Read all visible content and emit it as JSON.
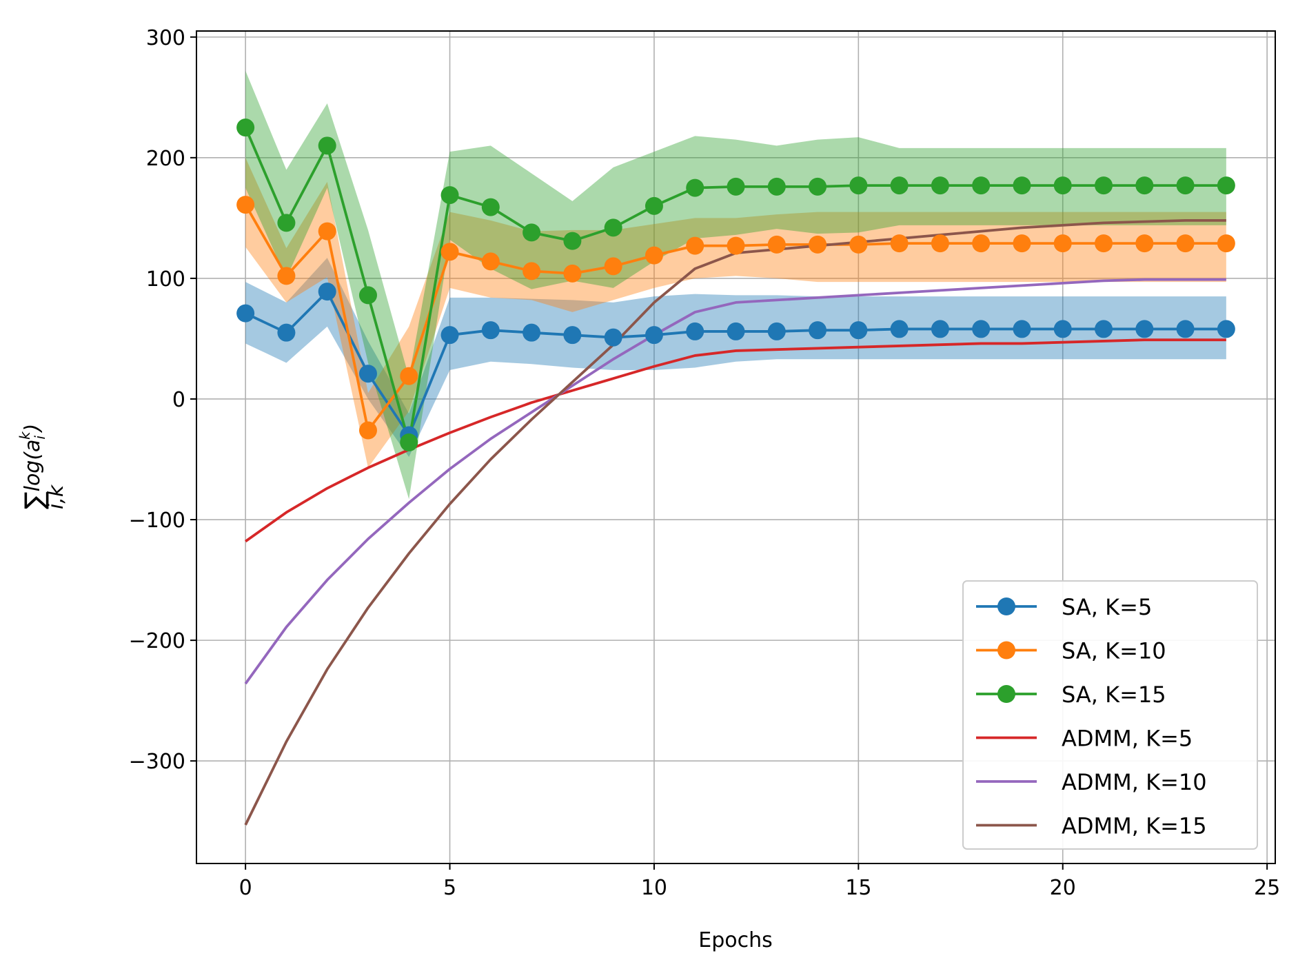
{
  "chart_data": {
    "type": "line",
    "title": "",
    "xlabel": "Epochs",
    "ylabel": "∑ log(a_i^k)",
    "ylabel_parts": {
      "sum": "∑",
      "subscript": "i,k",
      "main": "log(a",
      "sup": "k",
      "sub": "i",
      "close": ")"
    },
    "xlim": [
      -1.2,
      25.2
    ],
    "ylim": [
      -385,
      305
    ],
    "xticks": [
      0,
      5,
      10,
      15,
      20,
      25
    ],
    "yticks": [
      -300,
      -200,
      -100,
      0,
      100,
      200,
      300
    ],
    "xtick_labels": [
      "0",
      "5",
      "10",
      "15",
      "20",
      "25"
    ],
    "ytick_labels": [
      "−300",
      "−200",
      "−100",
      "0",
      "100",
      "200",
      "300"
    ],
    "grid": true,
    "legend_position": "lower-right",
    "x": [
      0,
      1,
      2,
      3,
      4,
      5,
      6,
      7,
      8,
      9,
      10,
      11,
      12,
      13,
      14,
      15,
      16,
      17,
      18,
      19,
      20,
      21,
      22,
      23,
      24
    ],
    "series": [
      {
        "name": "SA, K=5",
        "label": "SA, K=5",
        "color": "#1f77b4",
        "marker": true,
        "values": [
          71,
          55,
          89,
          21,
          -30,
          53,
          57,
          55,
          53,
          51,
          53,
          56,
          56,
          56,
          57,
          57,
          58,
          58,
          58,
          58,
          58,
          58,
          58,
          58,
          58
        ],
        "band_upper": [
          97,
          80,
          117,
          48,
          -12,
          84,
          84,
          83,
          82,
          80,
          85,
          87,
          86,
          86,
          85,
          85,
          85,
          85,
          85,
          85,
          85,
          85,
          85,
          85,
          85
        ],
        "band_lower": [
          46,
          30,
          60,
          0,
          -48,
          24,
          31,
          29,
          26,
          24,
          24,
          26,
          31,
          33,
          33,
          33,
          33,
          33,
          33,
          33,
          33,
          33,
          33,
          33,
          33
        ]
      },
      {
        "name": "SA, K=10",
        "label": "SA, K=10",
        "color": "#ff7f0e",
        "marker": true,
        "values": [
          161,
          102,
          139,
          -26,
          19,
          122,
          114,
          106,
          104,
          110,
          119,
          127,
          127,
          128,
          128,
          128,
          129,
          129,
          129,
          129,
          129,
          129,
          129,
          129,
          129
        ],
        "band_upper": [
          200,
          125,
          180,
          5,
          60,
          155,
          148,
          139,
          140,
          140,
          145,
          150,
          150,
          153,
          155,
          155,
          155,
          155,
          155,
          155,
          155,
          155,
          155,
          155,
          155
        ],
        "band_lower": [
          126,
          80,
          101,
          -57,
          -10,
          92,
          84,
          82,
          72,
          82,
          92,
          100,
          102,
          100,
          97,
          97,
          97,
          97,
          97,
          97,
          97,
          97,
          97,
          97,
          97
        ]
      },
      {
        "name": "SA, K=15",
        "label": "SA, K=15",
        "color": "#2ca02c",
        "marker": true,
        "values": [
          225,
          146,
          210,
          86,
          -36,
          169,
          159,
          138,
          131,
          142,
          160,
          175,
          176,
          176,
          176,
          177,
          177,
          177,
          177,
          177,
          177,
          177,
          177,
          177,
          177
        ],
        "band_upper": [
          272,
          190,
          245,
          140,
          18,
          205,
          210,
          187,
          164,
          192,
          205,
          218,
          215,
          210,
          215,
          217,
          208,
          208,
          208,
          208,
          208,
          208,
          208,
          208,
          208
        ],
        "band_lower": [
          175,
          100,
          175,
          30,
          -83,
          132,
          108,
          91,
          98,
          92,
          114,
          133,
          136,
          141,
          137,
          138,
          144,
          144,
          144,
          144,
          144,
          144,
          144,
          144,
          144
        ]
      },
      {
        "name": "ADMM, K=5",
        "label": "ADMM, K=5",
        "color": "#d62728",
        "marker": false,
        "values": [
          -118,
          -94,
          -74,
          -57,
          -42,
          -28,
          -15,
          -3,
          7,
          17,
          27,
          36,
          40,
          41,
          42,
          43,
          44,
          45,
          46,
          46,
          47,
          48,
          49,
          49,
          49
        ]
      },
      {
        "name": "ADMM, K=10",
        "label": "ADMM, K=10",
        "color": "#9467bd",
        "marker": false,
        "values": [
          -236,
          -189,
          -150,
          -116,
          -86,
          -58,
          -33,
          -11,
          11,
          33,
          53,
          72,
          80,
          82,
          84,
          86,
          88,
          90,
          92,
          94,
          96,
          98,
          99,
          99,
          99
        ]
      },
      {
        "name": "ADMM, K=15",
        "label": "ADMM, K=15",
        "color": "#8c564b",
        "marker": false,
        "values": [
          -353,
          -284,
          -224,
          -173,
          -128,
          -87,
          -50,
          -17,
          14,
          45,
          80,
          108,
          121,
          124,
          127,
          130,
          133,
          136,
          139,
          142,
          144,
          146,
          147,
          148,
          148
        ]
      }
    ]
  }
}
